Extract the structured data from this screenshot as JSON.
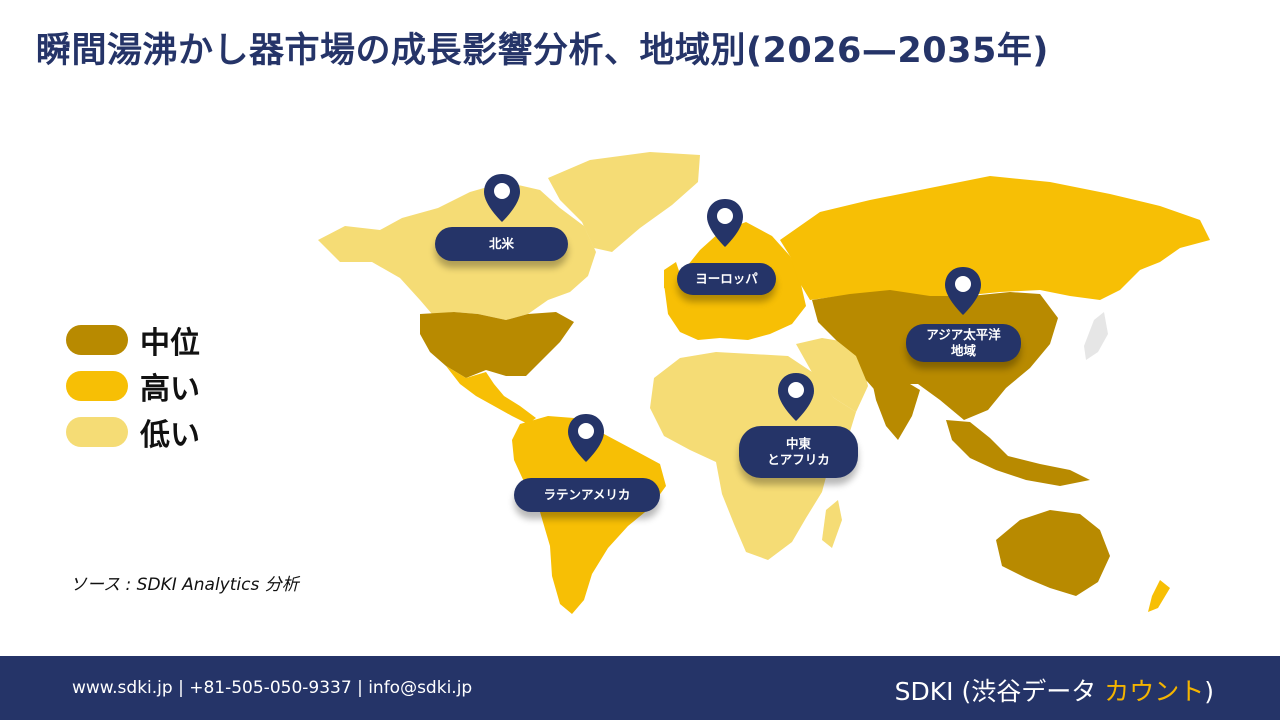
{
  "title": "瞬間湯沸かし器市場の成長影響分析、地域別(2026—2035年)",
  "legend": [
    {
      "label": "中位",
      "color": "#b88a00"
    },
    {
      "label": "高い",
      "color": "#f7bf05"
    },
    {
      "label": "低い",
      "color": "#f5dc75"
    }
  ],
  "regions": {
    "north_america": "北米",
    "europe": "ヨーロッパ",
    "asia_pacific": "アジア太平洋\n地域",
    "mea": "中東\nとアフリカ",
    "latam": "ラテンアメリカ"
  },
  "source": "ソース : SDKI Analytics 分析",
  "footer": {
    "contact": "www.sdki.jp | +81-505-050-9337 | info@sdki.jp",
    "brand_prefix": "SDKI (渋谷データ ",
    "brand_accent": "カウント",
    "brand_suffix": ")"
  },
  "colors": {
    "navy": "#253468",
    "medium": "#b88a00",
    "high": "#f7bf05",
    "low": "#f5dc75"
  }
}
